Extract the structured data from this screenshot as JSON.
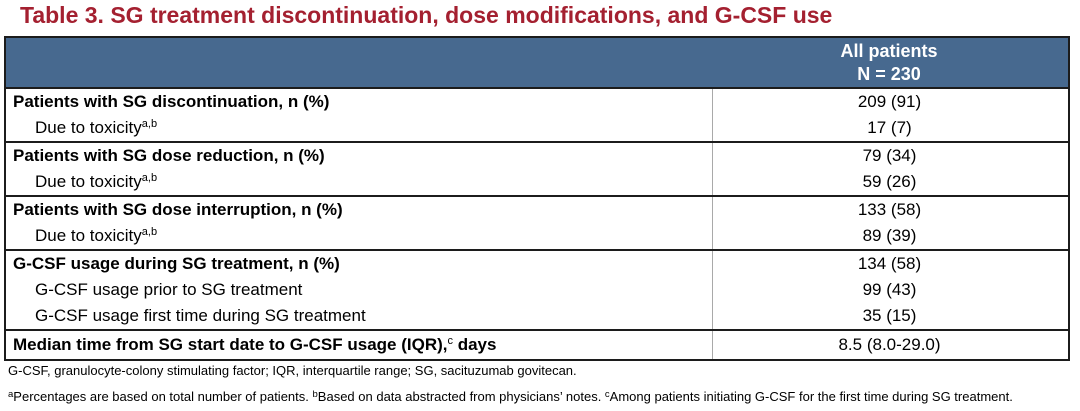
{
  "title": "Table 3. SG treatment discontinuation, dose modifications, and G-CSF use",
  "colors": {
    "title_red": "#A42030",
    "header_blue": "#47698F",
    "border_dark": "#1c1c1c",
    "column_divider_gray": "#a9a9a9"
  },
  "table": {
    "header": {
      "line1": "All patients",
      "line2": "N = 230"
    },
    "rows": [
      {
        "pre": "Patients with SG discontinuation, n (%)",
        "sup": "",
        "post": "",
        "value": "209 (91)"
      },
      {
        "pre": "Due to toxicity",
        "sup": "a,b",
        "post": "",
        "value": "17 (7)"
      },
      {
        "pre": "Patients with SG dose reduction, n (%)",
        "sup": "",
        "post": "",
        "value": "79 (34)"
      },
      {
        "pre": "Due to toxicity",
        "sup": "a,b",
        "post": "",
        "value": "59 (26)"
      },
      {
        "pre": "Patients with SG dose interruption, n (%)",
        "sup": "",
        "post": "",
        "value": "133 (58)"
      },
      {
        "pre": "Due to toxicity",
        "sup": "a,b",
        "post": "",
        "value": "89 (39)"
      },
      {
        "pre": "G-CSF usage during SG treatment, n (%)",
        "sup": "",
        "post": "",
        "value": "134 (58)"
      },
      {
        "pre": "G-CSF usage prior to SG treatment",
        "sup": "",
        "post": "",
        "value": "99 (43)"
      },
      {
        "pre": "G-CSF usage first time during SG treatment",
        "sup": "",
        "post": "",
        "value": "35 (15)"
      },
      {
        "pre": "Median time from SG start date to G-CSF usage (IQR),",
        "sup": "c",
        "post": " days",
        "value": "8.5 (8.0-29.0)"
      }
    ]
  },
  "footnotes": {
    "abbreviations": "G-CSF, granulocyte-colony stimulating factor; IQR, interquartile range; SG, sacituzumab govitecan.",
    "details": [
      {
        "sup": "a",
        "text": "Percentages are based on total number of patients. "
      },
      {
        "sup": "b",
        "text": "Based on data abstracted from physicians’ notes. "
      },
      {
        "sup": "c",
        "text": "Among patients initiating G-CSF for the first time during SG treatment."
      }
    ]
  }
}
